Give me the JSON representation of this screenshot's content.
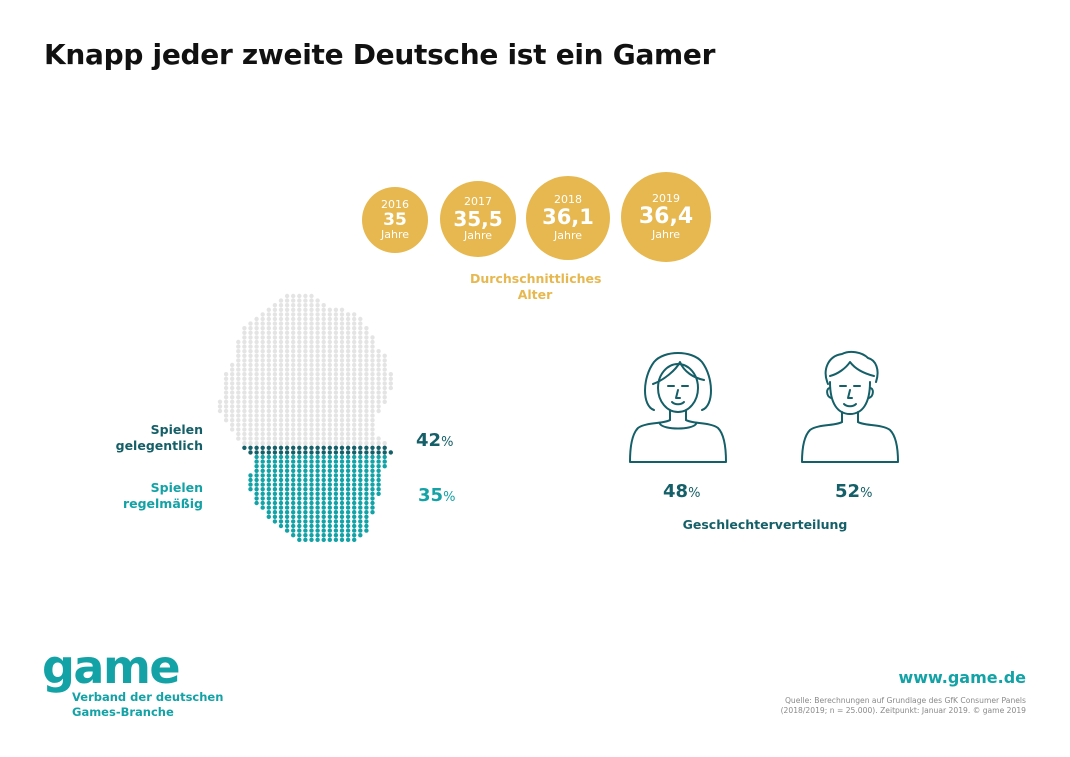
{
  "title": "Knapp jeder zweite Deutsche ist ein Gamer",
  "colors": {
    "gold": "#e6b84f",
    "dark_teal": "#155f68",
    "teal": "#13a2a6",
    "light_gray": "#e4e4e4"
  },
  "chart_data": [
    {
      "type": "bubble",
      "title": "Durchschnittliches Alter",
      "categories": [
        "2016",
        "2017",
        "2018",
        "2019"
      ],
      "values": [
        35,
        35.5,
        36.1,
        36.4
      ],
      "value_labels": [
        "35",
        "35,5",
        "36,1",
        "36,4"
      ],
      "unit": "Jahre"
    },
    {
      "type": "map-dot-proportion",
      "series": [
        {
          "name": "Spielen gelegentlich",
          "value": 42,
          "label": "42",
          "color": "#155f68"
        },
        {
          "name": "Spielen regelmäßig",
          "value": 35,
          "label": "35",
          "color": "#13a2a6"
        }
      ],
      "unit": "%"
    },
    {
      "type": "pictogram",
      "title": "Geschlechterverteilung",
      "categories": [
        "female",
        "male"
      ],
      "values": [
        48,
        52
      ],
      "labels": [
        "48",
        "52"
      ],
      "unit": "%",
      "icons": [
        "woman-icon",
        "man-icon"
      ]
    }
  ],
  "labels": {
    "occasional_line1": "Spielen",
    "occasional_line2": "gelegentlich",
    "regular_line1": "Spielen",
    "regular_line2": "regelmäßig",
    "age_line1": "Durchschnittliches",
    "age_line2": "Alter"
  },
  "footer": {
    "logo": "game",
    "org_line1": "Verband der deutschen",
    "org_line2": "Games-Branche",
    "url": "www.game.de",
    "source_line1": "Quelle: Berechnungen auf Grundlage des GfK Consumer Panels",
    "source_line2": "(2018/2019; n = 25.000). Zeitpunkt: Januar 2019. © game 2019"
  }
}
